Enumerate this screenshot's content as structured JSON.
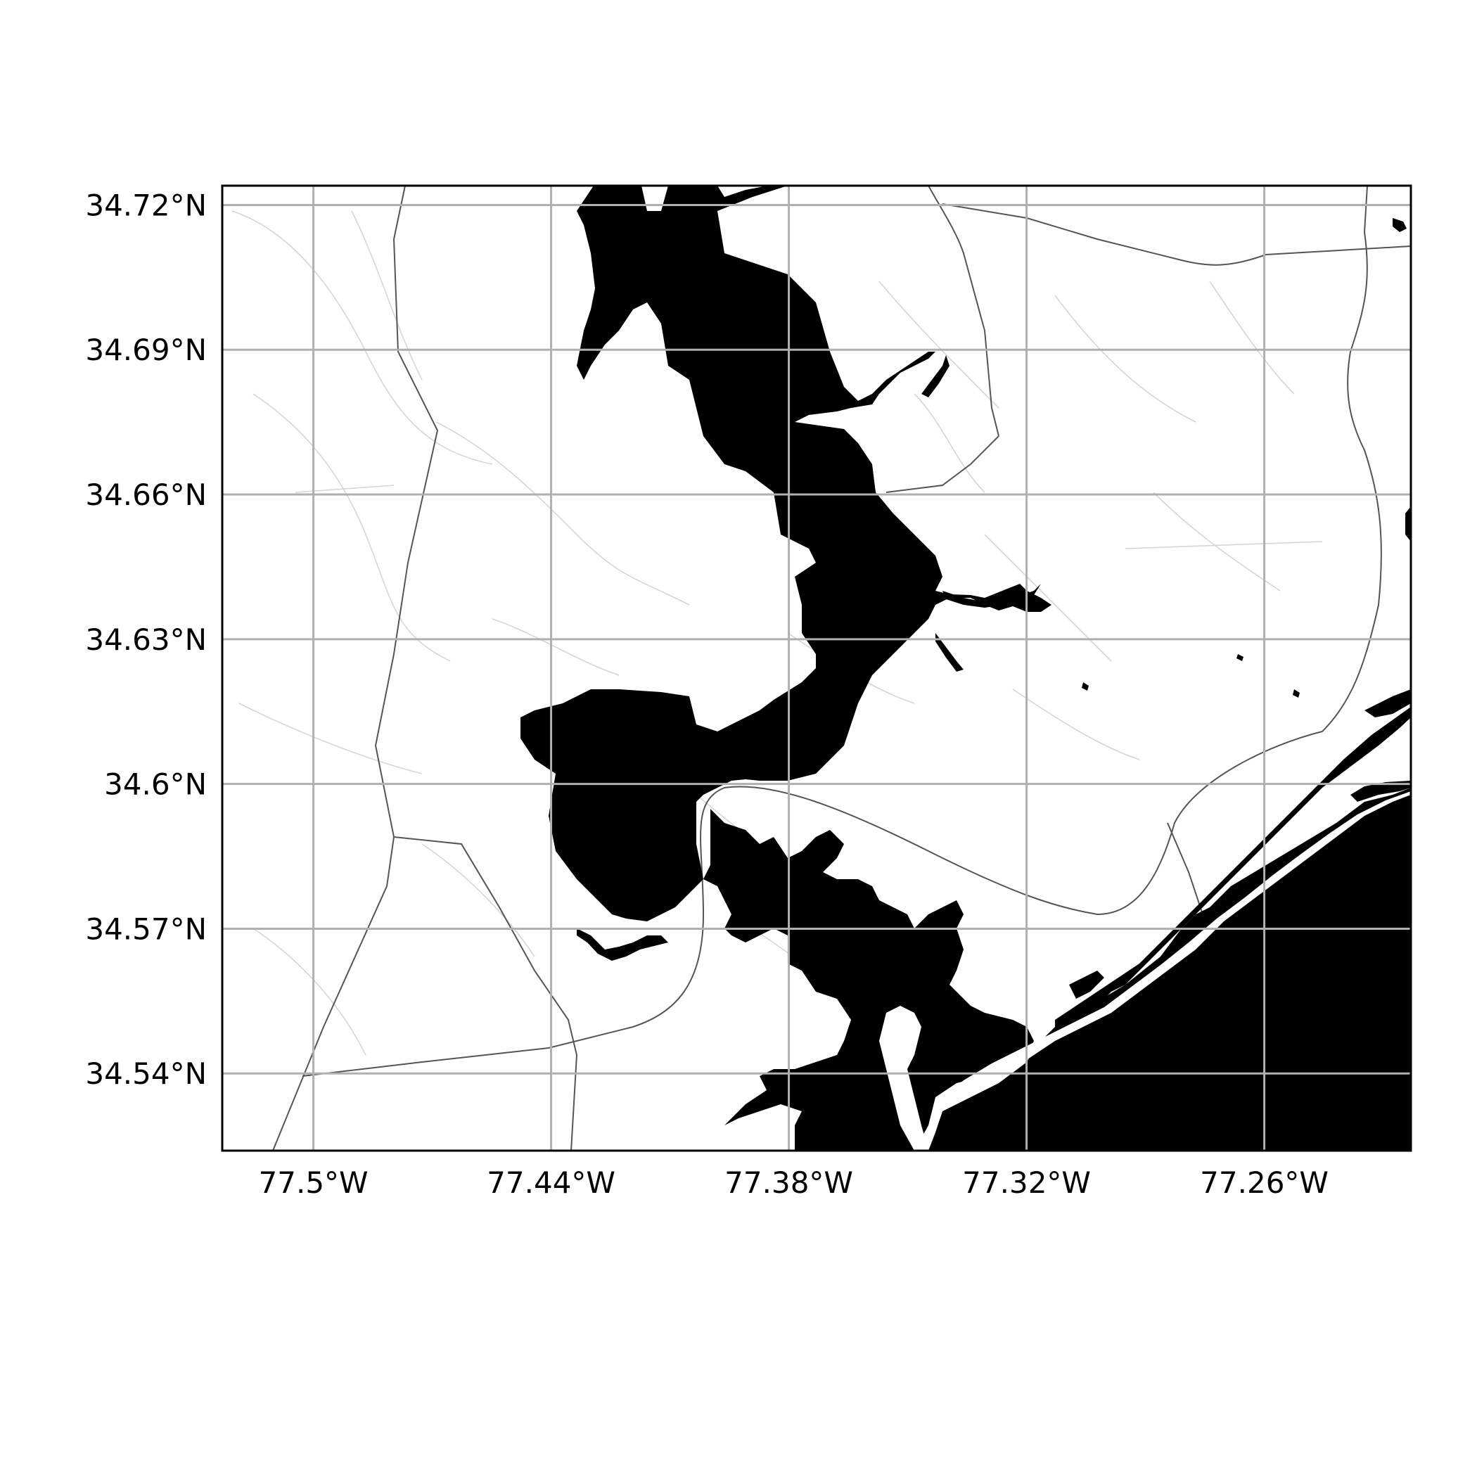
{
  "map": {
    "background_color": "#ffffff",
    "water_color": "#000000",
    "road_color": "#555555",
    "minor_road_color": "#d6d6d6",
    "gridline_color": "#b0b0b0",
    "frame_color": "#000000",
    "lon_ticks": [
      {
        "value": -77.5,
        "label": "77.5°W"
      },
      {
        "value": -77.44,
        "label": "77.44°W"
      },
      {
        "value": -77.38,
        "label": "77.38°W"
      },
      {
        "value": -77.32,
        "label": "77.32°W"
      },
      {
        "value": -77.26,
        "label": "77.26°W"
      }
    ],
    "lat_ticks": [
      {
        "value": 34.72,
        "label": "34.72°N"
      },
      {
        "value": 34.69,
        "label": "34.69°N"
      },
      {
        "value": 34.66,
        "label": "34.66°N"
      },
      {
        "value": 34.63,
        "label": "34.63°N"
      },
      {
        "value": 34.6,
        "label": "34.6°N"
      },
      {
        "value": 34.57,
        "label": "34.57°N"
      },
      {
        "value": 34.54,
        "label": "34.54°N"
      }
    ],
    "lon_range": [
      -77.523,
      -77.223
    ],
    "lat_range": [
      34.524,
      34.724
    ],
    "grid": true
  }
}
